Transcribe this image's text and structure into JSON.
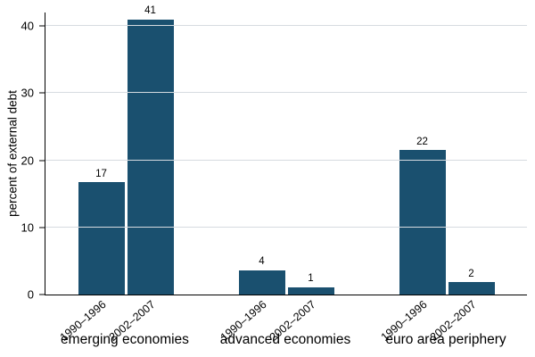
{
  "chart_data": {
    "type": "bar",
    "title": "",
    "xlabel": "",
    "ylabel": "percent of external debt",
    "ylim": [
      0,
      42
    ],
    "yticks": [
      0,
      10,
      20,
      30,
      40
    ],
    "grid": true,
    "legend": "none",
    "bar_color": "#1a506f",
    "grid_color": "#d6dbe0",
    "categories": [
      "1990–1996",
      "2002–2007"
    ],
    "groups": [
      {
        "label": "emerging economies",
        "bars": [
          {
            "period": "1990–1996",
            "value": 16.7,
            "label": "17"
          },
          {
            "period": "2002–2007",
            "value": 41.0,
            "label": "41"
          }
        ]
      },
      {
        "label": "advanced economies",
        "bars": [
          {
            "period": "1990–1996",
            "value": 3.6,
            "label": "4"
          },
          {
            "period": "2002–2007",
            "value": 1.1,
            "label": "1"
          }
        ]
      },
      {
        "label": "euro area periphery",
        "bars": [
          {
            "period": "1990–1996",
            "value": 21.5,
            "label": "22"
          },
          {
            "period": "2002–2007",
            "value": 1.8,
            "label": "2"
          }
        ]
      }
    ]
  }
}
